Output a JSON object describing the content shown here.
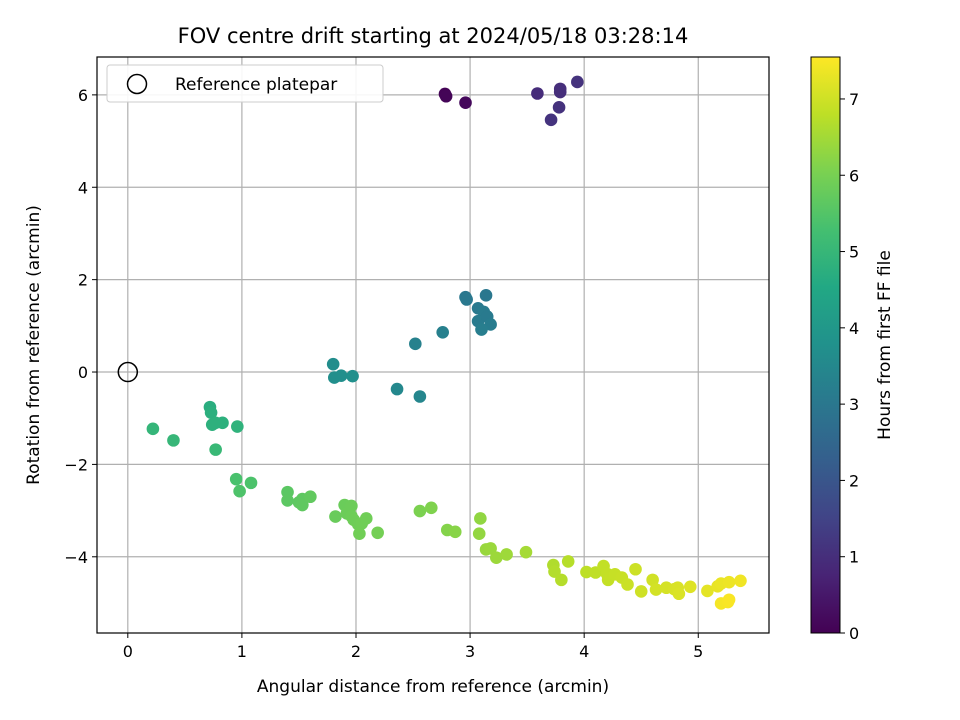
{
  "chart_data": {
    "type": "scatter",
    "title": "FOV centre drift starting at 2024/05/18 03:28:14",
    "xlabel": "Angular distance from reference (arcmin)",
    "ylabel": "Rotation from reference (arcmin)",
    "xlim": [
      -0.27,
      5.62
    ],
    "ylim": [
      -5.65,
      6.82
    ],
    "xticks": [
      0,
      1,
      2,
      3,
      4,
      5
    ],
    "xtick_labels": [
      "0",
      "1",
      "2",
      "3",
      "4",
      "5"
    ],
    "yticks": [
      -4,
      -2,
      0,
      2,
      4,
      6
    ],
    "ytick_labels": [
      "−4",
      "−2",
      "0",
      "2",
      "4",
      "6"
    ],
    "grid": true,
    "legend": {
      "label": "Reference platepar",
      "placement": "top-left",
      "marker": "hollow-circle"
    },
    "reference_point": {
      "x": 0,
      "y": 0
    },
    "colorbar": {
      "label": "Hours from first FF file",
      "range": [
        0,
        7.55
      ],
      "ticks": [
        0,
        1,
        2,
        3,
        4,
        5,
        6,
        7
      ],
      "tick_labels": [
        "0",
        "1",
        "2",
        "3",
        "4",
        "5",
        "6",
        "7"
      ],
      "colormap": [
        "#440154",
        "#482475",
        "#414487",
        "#355f8d",
        "#2a788e",
        "#21918c",
        "#22a884",
        "#44bf70",
        "#7ad151",
        "#bddf26",
        "#fde725"
      ]
    },
    "points": [
      {
        "x": 2.78,
        "y": 6.02,
        "t": 0.05
      },
      {
        "x": 2.79,
        "y": 5.97,
        "t": 0.08
      },
      {
        "x": 2.96,
        "y": 5.83,
        "t": 0.15
      },
      {
        "x": 3.59,
        "y": 6.03,
        "t": 0.95
      },
      {
        "x": 3.79,
        "y": 6.13,
        "t": 1.0
      },
      {
        "x": 3.79,
        "y": 6.06,
        "t": 1.02
      },
      {
        "x": 3.94,
        "y": 6.28,
        "t": 1.1
      },
      {
        "x": 3.78,
        "y": 5.73,
        "t": 1.08
      },
      {
        "x": 3.71,
        "y": 5.46,
        "t": 1.12
      },
      {
        "x": 2.96,
        "y": 1.62,
        "t": 3.0
      },
      {
        "x": 2.97,
        "y": 1.57,
        "t": 3.02
      },
      {
        "x": 3.07,
        "y": 1.38,
        "t": 3.05
      },
      {
        "x": 3.14,
        "y": 1.66,
        "t": 3.0
      },
      {
        "x": 3.12,
        "y": 1.3,
        "t": 3.1
      },
      {
        "x": 3.07,
        "y": 1.1,
        "t": 3.12
      },
      {
        "x": 3.15,
        "y": 1.2,
        "t": 3.08
      },
      {
        "x": 3.18,
        "y": 1.03,
        "t": 3.15
      },
      {
        "x": 3.1,
        "y": 0.92,
        "t": 3.2
      },
      {
        "x": 2.76,
        "y": 0.86,
        "t": 3.25
      },
      {
        "x": 2.52,
        "y": 0.61,
        "t": 3.3
      },
      {
        "x": 2.36,
        "y": -0.37,
        "t": 3.5
      },
      {
        "x": 2.56,
        "y": -0.53,
        "t": 3.45
      },
      {
        "x": 1.8,
        "y": 0.17,
        "t": 3.65
      },
      {
        "x": 1.81,
        "y": -0.12,
        "t": 3.7
      },
      {
        "x": 1.87,
        "y": -0.08,
        "t": 3.72
      },
      {
        "x": 1.97,
        "y": -0.09,
        "t": 3.75
      },
      {
        "x": 0.72,
        "y": -0.76,
        "t": 4.7
      },
      {
        "x": 0.73,
        "y": -0.88,
        "t": 4.75
      },
      {
        "x": 0.83,
        "y": -1.1,
        "t": 4.78
      },
      {
        "x": 0.74,
        "y": -1.14,
        "t": 4.8
      },
      {
        "x": 0.77,
        "y": -1.1,
        "t": 4.8
      },
      {
        "x": 0.96,
        "y": -1.18,
        "t": 4.85
      },
      {
        "x": 0.22,
        "y": -1.23,
        "t": 4.95
      },
      {
        "x": 0.4,
        "y": -1.48,
        "t": 5.0
      },
      {
        "x": 0.77,
        "y": -1.68,
        "t": 5.05
      },
      {
        "x": 0.95,
        "y": -2.32,
        "t": 5.35
      },
      {
        "x": 1.08,
        "y": -2.4,
        "t": 5.4
      },
      {
        "x": 0.98,
        "y": -2.58,
        "t": 5.42
      },
      {
        "x": 1.4,
        "y": -2.6,
        "t": 5.6
      },
      {
        "x": 1.4,
        "y": -2.78,
        "t": 5.62
      },
      {
        "x": 1.5,
        "y": -2.82,
        "t": 5.65
      },
      {
        "x": 1.53,
        "y": -2.75,
        "t": 5.65
      },
      {
        "x": 1.53,
        "y": -2.88,
        "t": 5.68
      },
      {
        "x": 1.6,
        "y": -2.7,
        "t": 5.7
      },
      {
        "x": 1.82,
        "y": -3.13,
        "t": 5.8
      },
      {
        "x": 1.9,
        "y": -2.88,
        "t": 5.82
      },
      {
        "x": 1.92,
        "y": -3.06,
        "t": 5.84
      },
      {
        "x": 1.96,
        "y": -2.9,
        "t": 5.85
      },
      {
        "x": 1.96,
        "y": -3.12,
        "t": 5.86
      },
      {
        "x": 1.98,
        "y": -3.2,
        "t": 5.87
      },
      {
        "x": 2.02,
        "y": -3.3,
        "t": 5.88
      },
      {
        "x": 2.05,
        "y": -3.28,
        "t": 5.9
      },
      {
        "x": 2.09,
        "y": -3.17,
        "t": 5.9
      },
      {
        "x": 2.03,
        "y": -3.5,
        "t": 5.92
      },
      {
        "x": 2.19,
        "y": -3.48,
        "t": 5.95
      },
      {
        "x": 2.56,
        "y": -3.01,
        "t": 6.05
      },
      {
        "x": 2.66,
        "y": -2.94,
        "t": 6.1
      },
      {
        "x": 2.8,
        "y": -3.42,
        "t": 6.15
      },
      {
        "x": 2.87,
        "y": -3.46,
        "t": 6.2
      },
      {
        "x": 3.09,
        "y": -3.17,
        "t": 6.3
      },
      {
        "x": 3.08,
        "y": -3.5,
        "t": 6.32
      },
      {
        "x": 3.14,
        "y": -3.84,
        "t": 6.38
      },
      {
        "x": 3.18,
        "y": -3.82,
        "t": 6.4
      },
      {
        "x": 3.23,
        "y": -4.02,
        "t": 6.42
      },
      {
        "x": 3.32,
        "y": -3.95,
        "t": 6.45
      },
      {
        "x": 3.49,
        "y": -3.9,
        "t": 6.52
      },
      {
        "x": 3.73,
        "y": -4.18,
        "t": 6.65
      },
      {
        "x": 3.74,
        "y": -4.32,
        "t": 6.68
      },
      {
        "x": 3.8,
        "y": -4.5,
        "t": 6.7
      },
      {
        "x": 3.86,
        "y": -4.1,
        "t": 6.72
      },
      {
        "x": 4.02,
        "y": -4.33,
        "t": 6.8
      },
      {
        "x": 4.1,
        "y": -4.34,
        "t": 6.82
      },
      {
        "x": 4.17,
        "y": -4.2,
        "t": 6.85
      },
      {
        "x": 4.2,
        "y": -4.37,
        "t": 6.87
      },
      {
        "x": 4.21,
        "y": -4.5,
        "t": 6.88
      },
      {
        "x": 4.27,
        "y": -4.38,
        "t": 6.9
      },
      {
        "x": 4.33,
        "y": -4.45,
        "t": 6.92
      },
      {
        "x": 4.38,
        "y": -4.6,
        "t": 6.95
      },
      {
        "x": 4.45,
        "y": -4.27,
        "t": 6.97
      },
      {
        "x": 4.5,
        "y": -4.75,
        "t": 7.0
      },
      {
        "x": 4.6,
        "y": -4.5,
        "t": 7.02
      },
      {
        "x": 4.63,
        "y": -4.71,
        "t": 7.05
      },
      {
        "x": 4.72,
        "y": -4.67,
        "t": 7.08
      },
      {
        "x": 4.79,
        "y": -4.7,
        "t": 7.1
      },
      {
        "x": 4.82,
        "y": -4.67,
        "t": 7.12
      },
      {
        "x": 4.83,
        "y": -4.8,
        "t": 7.14
      },
      {
        "x": 4.93,
        "y": -4.65,
        "t": 7.18
      },
      {
        "x": 5.08,
        "y": -4.74,
        "t": 7.25
      },
      {
        "x": 5.17,
        "y": -4.64,
        "t": 7.3
      },
      {
        "x": 5.2,
        "y": -4.58,
        "t": 7.32
      },
      {
        "x": 5.27,
        "y": -4.55,
        "t": 7.36
      },
      {
        "x": 5.37,
        "y": -4.52,
        "t": 7.4
      },
      {
        "x": 5.2,
        "y": -5.01,
        "t": 7.45
      },
      {
        "x": 5.26,
        "y": -4.98,
        "t": 7.48
      },
      {
        "x": 5.27,
        "y": -4.93,
        "t": 7.5
      }
    ]
  }
}
